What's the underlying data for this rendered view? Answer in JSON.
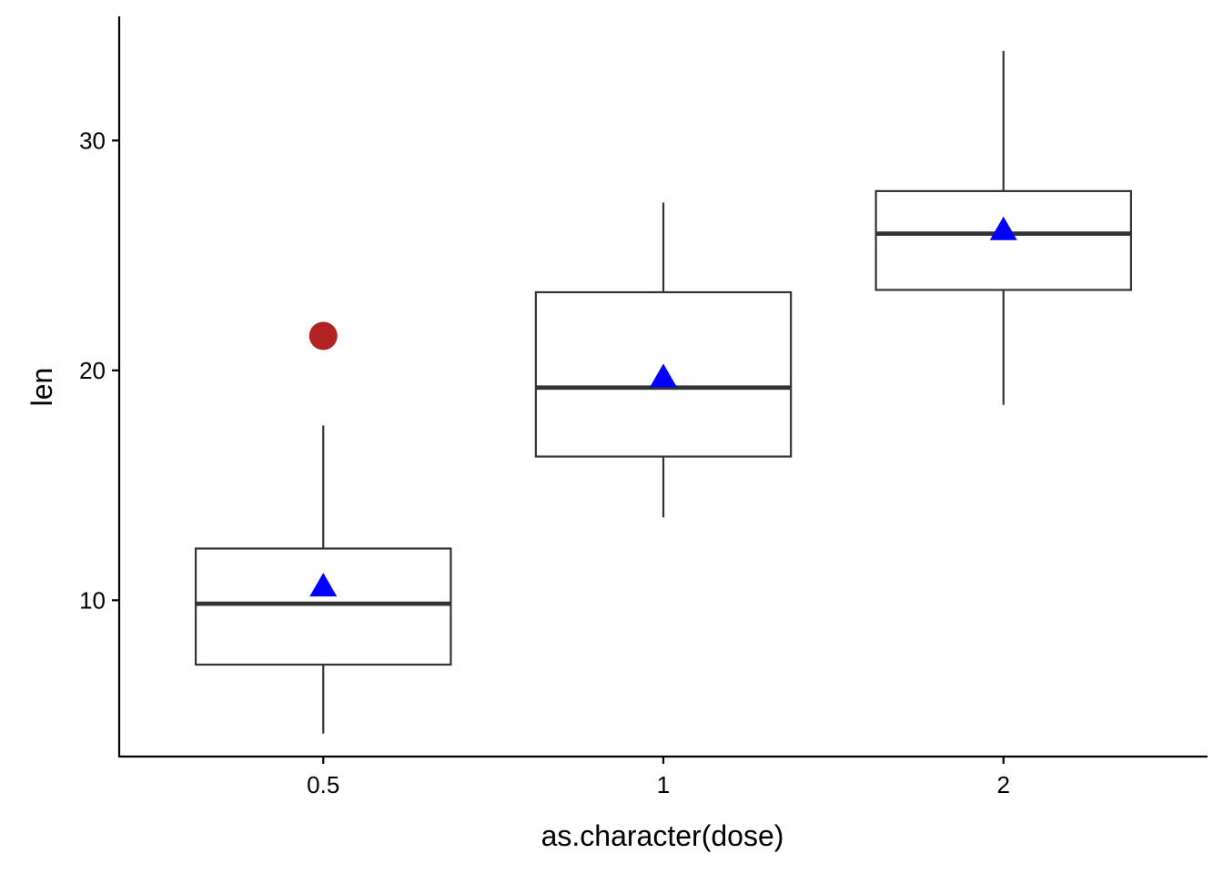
{
  "chart_data": {
    "type": "box",
    "xlabel": "as.character(dose)",
    "ylabel": "len",
    "categories": [
      "0.5",
      "1",
      "2"
    ],
    "ylim": [
      3.2,
      35.4
    ],
    "yticks": [
      10,
      20,
      30
    ],
    "boxes": [
      {
        "category": "0.5",
        "lower_whisker": 4.2,
        "q1": 7.2,
        "median": 9.85,
        "q3": 12.25,
        "upper_whisker": 17.6,
        "mean": 10.6,
        "outliers": [
          21.5
        ]
      },
      {
        "category": "1",
        "lower_whisker": 13.6,
        "q1": 16.25,
        "median": 19.25,
        "q3": 23.4,
        "upper_whisker": 27.3,
        "mean": 19.7,
        "outliers": []
      },
      {
        "category": "2",
        "lower_whisker": 18.5,
        "q1": 23.5,
        "median": 25.95,
        "q3": 27.8,
        "upper_whisker": 33.9,
        "mean": 26.1,
        "outliers": []
      }
    ],
    "colors": {
      "outlier": "#b22222",
      "mean": "#0000ff",
      "box_line": "#333333"
    },
    "grid": false,
    "legend": "none"
  }
}
